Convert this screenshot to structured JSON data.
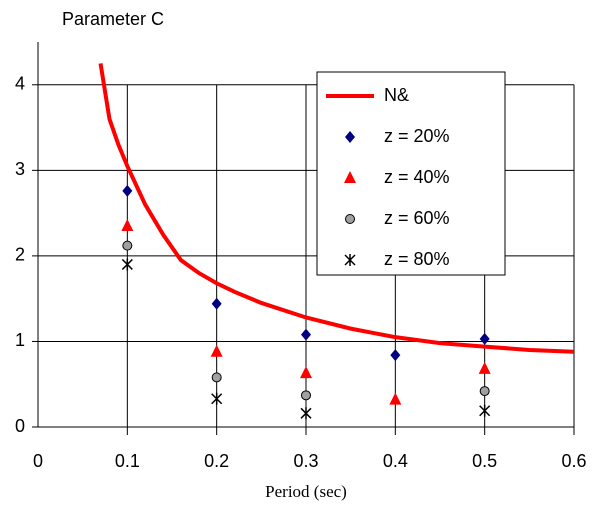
{
  "chart_data": {
    "type": "line_scatter",
    "title": "Parameter C",
    "x_label": "Period (sec)",
    "xlim": [
      0,
      0.6
    ],
    "xticks": [
      0,
      0.1,
      0.2,
      0.3,
      0.4,
      0.5,
      0.6
    ],
    "ylim": [
      0,
      4.5
    ],
    "yticks": [
      0,
      1,
      2,
      3,
      4
    ],
    "grid": true,
    "series": [
      {
        "name": "N&",
        "kind": "line",
        "color": "#ff0000",
        "x": [
          0.07,
          0.08,
          0.09,
          0.1,
          0.12,
          0.14,
          0.16,
          0.18,
          0.2,
          0.22,
          0.25,
          0.3,
          0.35,
          0.4,
          0.45,
          0.5,
          0.55,
          0.6
        ],
        "values": [
          4.25,
          3.6,
          3.3,
          3.05,
          2.6,
          2.25,
          1.95,
          1.8,
          1.68,
          1.58,
          1.45,
          1.28,
          1.15,
          1.05,
          0.98,
          0.94,
          0.9,
          0.88
        ]
      },
      {
        "name": "z = 20%",
        "kind": "diamond",
        "color": "#000080",
        "x": [
          0.1,
          0.2,
          0.3,
          0.4,
          0.5
        ],
        "values": [
          2.76,
          1.44,
          1.08,
          0.84,
          1.03
        ]
      },
      {
        "name": "z = 40%",
        "kind": "triangle",
        "color": "#ff0000",
        "x": [
          0.1,
          0.2,
          0.3,
          0.4,
          0.5
        ],
        "values": [
          2.35,
          0.88,
          0.63,
          0.32,
          0.68
        ]
      },
      {
        "name": "z = 60%",
        "kind": "circle",
        "color": "#a0a0a0",
        "x": [
          0.1,
          0.2,
          0.3,
          0.4,
          0.5
        ],
        "values": [
          2.12,
          0.58,
          0.37,
          null,
          0.42
        ]
      },
      {
        "name": "z = 80%",
        "kind": "star",
        "color": "#000000",
        "x": [
          0.1,
          0.2,
          0.3,
          0.4,
          0.5
        ],
        "values": [
          1.9,
          0.33,
          0.16,
          null,
          0.19
        ]
      }
    ]
  }
}
